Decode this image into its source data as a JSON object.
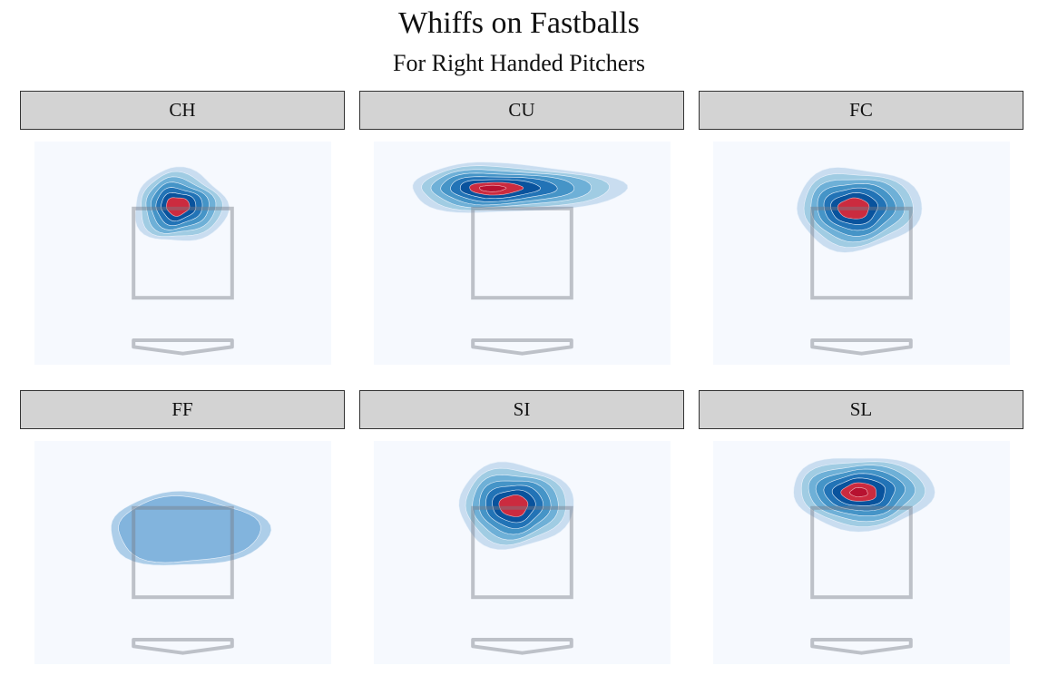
{
  "title": "Whiffs on Fastballs",
  "subtitle": "For Right Handed Pitchers",
  "chart_data": {
    "type": "heatmap",
    "title": "Whiffs on Fastballs",
    "subtitle": "For Right Handed Pitchers",
    "xlim": [
      -2.5,
      2.5
    ],
    "ylim": [
      0,
      5
    ],
    "strike_zone": {
      "x": [
        -0.83,
        0.83
      ],
      "z": [
        1.5,
        3.5
      ]
    },
    "colors": {
      "levels": [
        "#c6dbef",
        "#9ecae1",
        "#6baed6",
        "#4292c6",
        "#2171b5",
        "#08519c",
        "#d6293a",
        "#b5112f"
      ],
      "background": "#f6f9fe"
    },
    "facets": [
      {
        "label": "CH",
        "density_peaks": [
          {
            "x": -0.1,
            "z": 3.55,
            "weight": 1.0
          }
        ],
        "max_level": 7
      },
      {
        "label": "CU",
        "density_peaks": [
          {
            "x": -0.55,
            "z": 3.95,
            "weight": 1.0
          }
        ],
        "max_level": 8
      },
      {
        "label": "FC",
        "density_peaks": [
          {
            "x": -0.15,
            "z": 3.5,
            "weight": 1.0
          }
        ],
        "max_level": 7
      },
      {
        "label": "FF",
        "density_peaks": [
          {
            "x": 0.0,
            "z": 3.0,
            "weight": 1.0
          }
        ],
        "max_level": 2
      },
      {
        "label": "SI",
        "density_peaks": [
          {
            "x": -0.15,
            "z": 3.55,
            "weight": 1.0
          }
        ],
        "max_level": 7
      },
      {
        "label": "SL",
        "density_peaks": [
          {
            "x": -0.05,
            "z": 3.85,
            "weight": 1.0
          }
        ],
        "max_level": 8
      }
    ]
  }
}
